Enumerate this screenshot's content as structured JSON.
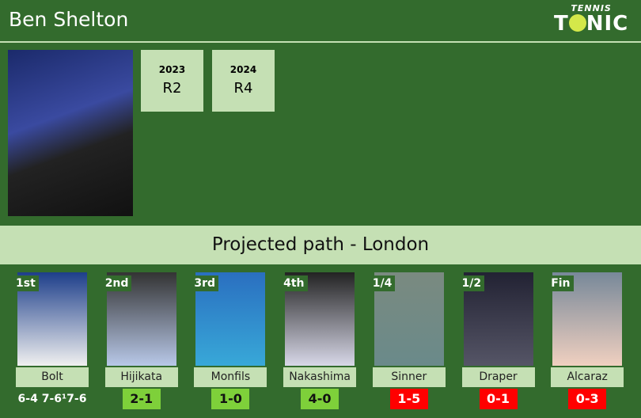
{
  "header": {
    "title": "Ben Shelton",
    "logo_top": "TENNIS",
    "logo_bottom": "TONIC"
  },
  "years": [
    {
      "year": "2023",
      "result": "R2"
    },
    {
      "year": "2024",
      "result": "R4"
    }
  ],
  "banner": "Projected path - London",
  "colors": {
    "background": "#336b2d",
    "light": "#c5e0b4",
    "win": "#7ed03a",
    "loss": "#ff0000"
  },
  "opponents": [
    {
      "round": "1st",
      "name": "Bolt",
      "score": "6-4 7-6¹7-6",
      "type": "txt"
    },
    {
      "round": "2nd",
      "name": "Hijikata",
      "score": "2-1",
      "type": "win"
    },
    {
      "round": "3rd",
      "name": "Monfils",
      "score": "1-0",
      "type": "win"
    },
    {
      "round": "4th",
      "name": "Nakashima",
      "score": "4-0",
      "type": "win"
    },
    {
      "round": "1/4",
      "name": "Sinner",
      "score": "1-5",
      "type": "loss"
    },
    {
      "round": "1/2",
      "name": "Draper",
      "score": "0-1",
      "type": "loss"
    },
    {
      "round": "Fin",
      "name": "Alcaraz",
      "score": "0-3",
      "type": "loss"
    }
  ]
}
